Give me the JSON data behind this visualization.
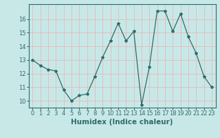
{
  "x": [
    0,
    1,
    2,
    3,
    4,
    5,
    6,
    7,
    8,
    9,
    10,
    11,
    12,
    13,
    14,
    15,
    16,
    17,
    18,
    19,
    20,
    21,
    22,
    23
  ],
  "y": [
    13.0,
    12.6,
    12.3,
    12.2,
    10.8,
    10.0,
    10.4,
    10.5,
    11.8,
    13.2,
    14.4,
    15.7,
    14.4,
    15.1,
    9.7,
    12.5,
    16.6,
    16.6,
    15.1,
    16.4,
    14.7,
    13.5,
    11.8,
    11.0
  ],
  "xlabel": "Humidex (Indice chaleur)",
  "xlim": [
    -0.5,
    23.5
  ],
  "ylim": [
    9.5,
    17.1
  ],
  "yticks": [
    10,
    11,
    12,
    13,
    14,
    15,
    16
  ],
  "xticks": [
    0,
    1,
    2,
    3,
    4,
    5,
    6,
    7,
    8,
    9,
    10,
    11,
    12,
    13,
    14,
    15,
    16,
    17,
    18,
    19,
    20,
    21,
    22,
    23
  ],
  "line_color": "#2e6b6b",
  "marker": "*",
  "marker_size": 3.0,
  "bg_color": "#c8e8e8",
  "grid_color": "#e8b8b8",
  "axis_color": "#2e6b6b",
  "tick_label_color": "#2e6b6b",
  "xlabel_color": "#2e6b6b",
  "xlabel_fontsize": 7.5,
  "tick_fontsize": 6.0,
  "linewidth": 0.9
}
